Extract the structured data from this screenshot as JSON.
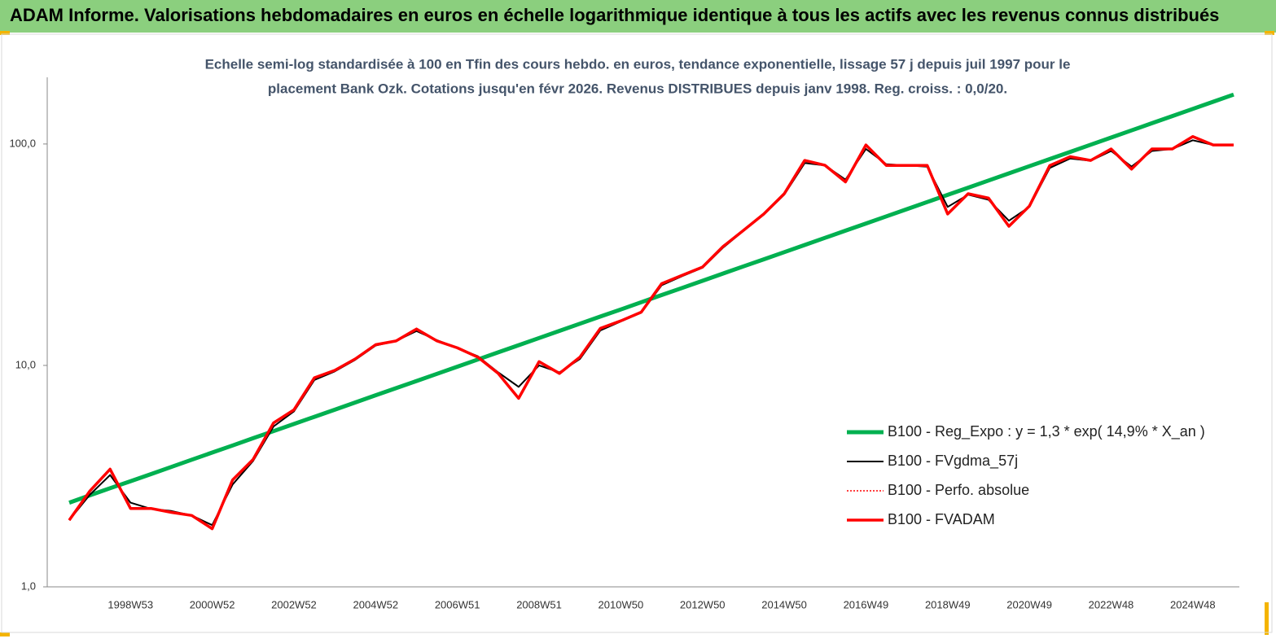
{
  "chart_data": {
    "type": "line",
    "title": "ADAM Informe. Valorisations hebdomadaires en euros en échelle logarithmique identique à tous les actifs avec les revenus connus distribués",
    "subtitle": [
      "Echelle semi-log standardisée à 100 en Tfin des cours hebdo. en euros, tendance exponentielle, lissage 57 j depuis juil 1997 pour le",
      "placement Bank Ozk. Cotations jusqu'en févr 2026. Revenus DISTRIBUES depuis janv 1998.  Reg. croiss. : 0,0/20."
    ],
    "categories": [
      null,
      null,
      null,
      "1998W53",
      null,
      null,
      null,
      "2000W52",
      null,
      null,
      null,
      "2002W52",
      null,
      null,
      null,
      "2004W52",
      null,
      null,
      null,
      "2006W51",
      null,
      null,
      null,
      "2008W51",
      null,
      null,
      null,
      "2010W50",
      null,
      null,
      null,
      "2012W50",
      null,
      null,
      null,
      "2014W50",
      null,
      null,
      null,
      "2016W49",
      null,
      null,
      null,
      "2018W49",
      null,
      null,
      null,
      "2020W49",
      null,
      null,
      null,
      "2022W48",
      null,
      null,
      null,
      "2024W48",
      null,
      null
    ],
    "log_scale": true,
    "ylim": [
      1,
      200
    ],
    "yticks": [
      {
        "value": 1,
        "label": "1,0"
      },
      {
        "value": 10,
        "label": "10,0"
      },
      {
        "value": 100,
        "label": "100,0"
      }
    ],
    "grid": false,
    "legend": "right",
    "series": [
      {
        "name": "B100 - Reg_Expo : y = 1,3 * exp( 14,9% *  X_an )",
        "color": "#00b050",
        "width": 5,
        "dash": null,
        "values": [
          2.4,
          2.59,
          2.79,
          3.0,
          3.23,
          3.48,
          3.75,
          4.04,
          4.35,
          4.69,
          5.05,
          5.44,
          5.86,
          6.31,
          6.8,
          7.33,
          7.89,
          8.5,
          9.16,
          9.87,
          10.63,
          11.45,
          12.34,
          13.29,
          14.32,
          15.43,
          16.62,
          17.9,
          19.29,
          20.78,
          22.38,
          24.11,
          25.98,
          27.99,
          30.15,
          32.48,
          34.99,
          37.7,
          40.61,
          43.75,
          47.13,
          50.78,
          54.7,
          58.93,
          63.49,
          68.4,
          73.68,
          79.38,
          85.52,
          92.13,
          99.25,
          106.9,
          115.2,
          124.1,
          133.7,
          144.0,
          155.2,
          167.2
        ]
      },
      {
        "name": "B100 - FVgdma_57j",
        "color": "#000000",
        "width": 2,
        "dash": null,
        "values": [
          2.0,
          2.6,
          3.2,
          2.4,
          2.25,
          2.2,
          2.1,
          1.9,
          2.9,
          3.7,
          5.3,
          6.2,
          8.6,
          9.4,
          10.6,
          12.3,
          12.9,
          14.3,
          13.0,
          12.0,
          11.0,
          9.3,
          8.0,
          10.0,
          9.3,
          10.7,
          14.4,
          15.8,
          17.3,
          23.0,
          25.3,
          27.6,
          34.0,
          40.5,
          48.0,
          59.0,
          82.0,
          80.0,
          69.0,
          95.0,
          81.0,
          80.0,
          79.0,
          52.0,
          59.0,
          56.0,
          45.0,
          52.0,
          78.0,
          86.0,
          84.0,
          93.0,
          79.0,
          93.0,
          95.0,
          104.0,
          99.0,
          99.0
        ]
      },
      {
        "name": "B100 - Perfo. absolue",
        "color": "#ff0000",
        "width": 1.5,
        "dash": "2,2",
        "values": [
          2.0,
          2.7,
          3.4,
          2.26,
          2.26,
          2.17,
          2.1,
          1.83,
          3.04,
          3.76,
          5.5,
          6.3,
          8.8,
          9.5,
          10.7,
          12.4,
          12.9,
          14.6,
          12.9,
          12.0,
          10.9,
          9.2,
          7.1,
          10.4,
          9.2,
          10.9,
          14.7,
          15.9,
          17.4,
          23.4,
          25.5,
          27.8,
          34.4,
          40.7,
          48.3,
          59.6,
          84.3,
          80.1,
          67.4,
          99.0,
          80.0,
          80.0,
          80.0,
          48.3,
          59.6,
          57.0,
          42.5,
          52.4,
          80.0,
          87.6,
          84.3,
          95.0,
          77.0,
          95.0,
          95.0,
          108.0,
          99.0,
          99.0
        ]
      },
      {
        "name": "B100 - FVADAM",
        "color": "#ff0000",
        "width": 3.5,
        "dash": null,
        "values": [
          2.0,
          2.7,
          3.4,
          2.26,
          2.26,
          2.17,
          2.1,
          1.83,
          3.04,
          3.76,
          5.5,
          6.3,
          8.8,
          9.5,
          10.7,
          12.4,
          12.9,
          14.6,
          12.9,
          12.0,
          10.9,
          9.2,
          7.1,
          10.4,
          9.2,
          10.9,
          14.7,
          15.9,
          17.4,
          23.4,
          25.5,
          27.8,
          34.4,
          40.7,
          48.3,
          59.6,
          84.3,
          80.1,
          67.4,
          99.0,
          80.0,
          80.0,
          80.0,
          48.3,
          59.6,
          57.0,
          42.5,
          52.4,
          80.0,
          87.6,
          84.3,
          95.0,
          77.0,
          95.0,
          95.0,
          108.0,
          99.0,
          99.0
        ]
      }
    ]
  }
}
